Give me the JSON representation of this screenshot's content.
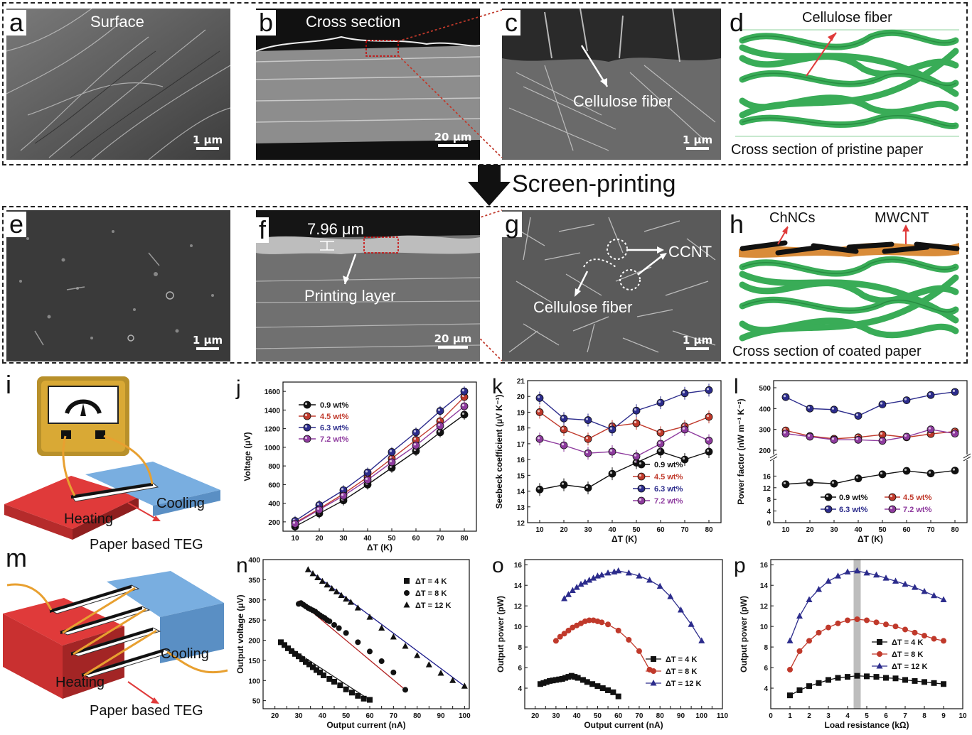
{
  "panels": {
    "a": {
      "letter": "a",
      "caption": "Surface",
      "scale": "1 μm"
    },
    "b": {
      "letter": "b",
      "caption": "Cross section",
      "scale": "20 μm"
    },
    "c": {
      "letter": "c",
      "caption": "Cellulose fiber",
      "scale": "1 μm"
    },
    "d": {
      "letter": "d",
      "top_label": "Cellulose fiber",
      "bottom_label": "Cross section of pristine paper"
    },
    "e": {
      "letter": "e",
      "scale": "1 μm"
    },
    "f": {
      "letter": "f",
      "thickness": "7.96 μm",
      "caption": "Printing layer",
      "scale": "20 μm"
    },
    "g": {
      "letter": "g",
      "ccnt": "CCNT",
      "caption": "Cellulose fiber",
      "scale": "1 μm"
    },
    "h": {
      "letter": "h",
      "label1": "ChNCs",
      "label2": "MWCNT",
      "bottom_label": "Cross section of coated paper"
    },
    "i": {
      "letter": "i",
      "cooling": "Cooling",
      "heating": "Heating",
      "teg": "Paper based TEG"
    },
    "m": {
      "letter": "m",
      "cooling": "Cooling",
      "heating": "Heating",
      "teg": "Paper based TEG"
    }
  },
  "process_arrow": "Screen-printing",
  "colors": {
    "black": "#111111",
    "red": "#c0392b",
    "blue": "#2c2c8c",
    "purple": "#8e3b9e",
    "fiber": "#2fa84f",
    "hot": "#e03a3a",
    "cold": "#79aee0",
    "coat_orange": "#d98c3a"
  },
  "chart_data": [
    {
      "id": "j",
      "letter": "j",
      "type": "line",
      "xlabel": "ΔT (K)",
      "ylabel": "Voltage (μV)",
      "x": [
        10,
        20,
        30,
        40,
        50,
        60,
        70,
        80
      ],
      "xlim": [
        5,
        85
      ],
      "ylim": [
        100,
        1700
      ],
      "xticks": [
        10,
        20,
        30,
        40,
        50,
        60,
        70,
        80
      ],
      "yticks": [
        200,
        400,
        600,
        800,
        1000,
        1200,
        1400,
        1600
      ],
      "legend_position": "top-left",
      "series": [
        {
          "name": "0.9 wt%",
          "color": "#111111",
          "values": [
            150,
            290,
            430,
            600,
            780,
            960,
            1160,
            1350
          ]
        },
        {
          "name": "4.5 wt%",
          "color": "#c0392b",
          "values": [
            190,
            340,
            500,
            680,
            880,
            1080,
            1280,
            1540
          ]
        },
        {
          "name": "6.3 wt%",
          "color": "#2c2c8c",
          "values": [
            210,
            380,
            540,
            730,
            950,
            1160,
            1390,
            1600
          ]
        },
        {
          "name": "7.2 wt%",
          "color": "#8e3b9e",
          "values": [
            180,
            330,
            480,
            650,
            840,
            1020,
            1230,
            1440
          ]
        }
      ]
    },
    {
      "id": "k",
      "letter": "k",
      "type": "line",
      "xlabel": "ΔT (K)",
      "ylabel": "Seebeck coefficient (μV K⁻¹)",
      "x": [
        10,
        20,
        30,
        40,
        50,
        60,
        70,
        80
      ],
      "xlim": [
        5,
        85
      ],
      "ylim": [
        12,
        21
      ],
      "xticks": [
        10,
        20,
        30,
        40,
        50,
        60,
        70,
        80
      ],
      "yticks": [
        12,
        13,
        14,
        15,
        16,
        17,
        18,
        19,
        20,
        21
      ],
      "legend_position": "bottom-right",
      "series": [
        {
          "name": "0.9 wt%",
          "color": "#111111",
          "values": [
            14.1,
            14.4,
            14.2,
            15.1,
            15.8,
            16.5,
            16.0,
            16.5
          ]
        },
        {
          "name": "4.5 wt%",
          "color": "#c0392b",
          "values": [
            19.0,
            17.9,
            17.3,
            18.1,
            18.3,
            17.7,
            18.1,
            18.7
          ]
        },
        {
          "name": "6.3 wt%",
          "color": "#2c2c8c",
          "values": [
            19.9,
            18.6,
            18.5,
            17.9,
            19.1,
            19.6,
            20.2,
            20.4
          ]
        },
        {
          "name": "7.2 wt%",
          "color": "#8e3b9e",
          "values": [
            17.3,
            16.9,
            16.4,
            16.5,
            16.2,
            17.0,
            17.9,
            17.2
          ]
        }
      ]
    },
    {
      "id": "l",
      "letter": "l",
      "type": "line",
      "xlabel": "ΔT (K)",
      "ylabel": "Power factor (nW m⁻¹ K⁻²)",
      "x": [
        10,
        20,
        30,
        40,
        50,
        60,
        70,
        80
      ],
      "xlim": [
        5,
        85
      ],
      "ylim_lower": [
        0,
        20
      ],
      "ylim_upper": [
        200,
        500
      ],
      "broken_axis": true,
      "xticks": [
        10,
        20,
        30,
        40,
        50,
        60,
        70,
        80
      ],
      "yticks_lower": [
        0,
        4,
        8,
        12,
        16
      ],
      "yticks_upper": [
        200,
        300,
        400,
        500
      ],
      "legend_position": "bottom",
      "series": [
        {
          "name": "0.9 wt%",
          "color": "#111111",
          "values": [
            13.2,
            13.8,
            13.4,
            15.2,
            16.6,
            17.8,
            16.9,
            17.9
          ]
        },
        {
          "name": "4.5 wt%",
          "color": "#c0392b",
          "values": [
            295,
            268,
            255,
            262,
            275,
            262,
            278,
            290
          ]
        },
        {
          "name": "6.3 wt%",
          "color": "#2c2c8c",
          "values": [
            455,
            400,
            395,
            365,
            420,
            440,
            465,
            480
          ]
        },
        {
          "name": "7.2 wt%",
          "color": "#8e3b9e",
          "values": [
            280,
            265,
            250,
            250,
            245,
            265,
            300,
            280
          ]
        }
      ]
    },
    {
      "id": "n",
      "letter": "n",
      "type": "scatter",
      "xlabel": "Output current (nA)",
      "ylabel": "Output voltage (μV)",
      "xlim": [
        15,
        102
      ],
      "ylim": [
        30,
        400
      ],
      "xticks": [
        20,
        25,
        30,
        35,
        40,
        45,
        50,
        55,
        60,
        65,
        70,
        75,
        80,
        85,
        90,
        95,
        100
      ],
      "yticks": [
        50,
        100,
        150,
        200,
        250,
        300,
        350,
        400
      ],
      "legend_position": "top-right",
      "series": [
        {
          "name": "ΔT = 4 K",
          "color": "#111111",
          "marker": "square",
          "x": [
            22.5,
            24,
            25.5,
            27,
            28.5,
            30,
            31.5,
            33,
            34.5,
            36,
            37.5,
            39,
            40.5,
            43,
            45,
            47.5,
            50,
            52.5,
            55,
            57.5,
            60
          ],
          "y": [
            195,
            188,
            180,
            173,
            166,
            160,
            153,
            146,
            140,
            133,
            126,
            120,
            113,
            104,
            97,
            88,
            78,
            70,
            62,
            55,
            52
          ]
        },
        {
          "name": "ΔT = 8 K",
          "color": "#111111",
          "marker": "circle",
          "x": [
            30,
            31,
            32,
            33,
            34,
            35,
            36,
            37,
            38,
            39,
            40,
            41,
            42,
            43,
            45,
            47,
            50,
            55,
            60,
            65,
            70,
            75
          ],
          "y": [
            290,
            292,
            288,
            284,
            280,
            277,
            274,
            271,
            266,
            262,
            258,
            255,
            250,
            247,
            238,
            230,
            218,
            195,
            172,
            148,
            120,
            77
          ]
        },
        {
          "name": "ΔT = 12 K",
          "color": "#111111",
          "marker": "triangle",
          "x": [
            34,
            36,
            38,
            40,
            42,
            44,
            46,
            48,
            50,
            52,
            55,
            60,
            65,
            70,
            75,
            80,
            85,
            90,
            95,
            100
          ],
          "y": [
            375,
            365,
            355,
            346,
            337,
            328,
            320,
            311,
            302,
            294,
            280,
            257,
            230,
            208,
            185,
            162,
            139,
            118,
            100,
            86
          ]
        }
      ],
      "fit_lines": [
        {
          "series": "ΔT = 4 K",
          "color": "#222222",
          "x1": 22.5,
          "y1": 195,
          "x2": 60,
          "y2": 52
        },
        {
          "series": "ΔT = 8 K",
          "color": "#b22222",
          "x1": 30,
          "y1": 298,
          "x2": 75,
          "y2": 77
        },
        {
          "series": "ΔT = 12 K",
          "color": "#1a1a8a",
          "x1": 34,
          "y1": 375,
          "x2": 100,
          "y2": 86
        }
      ]
    },
    {
      "id": "o",
      "letter": "o",
      "type": "line",
      "xlabel": "Output current (nA)",
      "ylabel": "Output power (pW)",
      "xlim": [
        15,
        110
      ],
      "ylim": [
        2,
        16.5
      ],
      "xticks": [
        20,
        25,
        30,
        35,
        40,
        45,
        50,
        55,
        60,
        65,
        70,
        75,
        80,
        85,
        90,
        95,
        100,
        105,
        110
      ],
      "yticks": [
        4,
        6,
        8,
        10,
        12,
        14,
        16
      ],
      "legend_position": "bottom-right",
      "series": [
        {
          "name": "ΔT = 4 K",
          "color": "#111111",
          "marker": "square",
          "x": [
            22.5,
            24,
            25.5,
            27,
            28.5,
            30,
            31.5,
            33,
            34.5,
            36,
            37.5,
            39,
            40.5,
            43,
            45,
            47.5,
            50,
            52.5,
            55,
            57.5,
            60
          ],
          "y": [
            4.4,
            4.5,
            4.6,
            4.7,
            4.75,
            4.8,
            4.85,
            4.9,
            5.0,
            5.1,
            5.2,
            5.1,
            5.0,
            4.8,
            4.6,
            4.4,
            4.2,
            4.0,
            3.8,
            3.6,
            3.2
          ]
        },
        {
          "name": "ΔT = 8 K",
          "color": "#c0392b",
          "marker": "circle",
          "x": [
            30,
            32,
            34,
            36,
            38,
            40,
            42,
            44,
            46,
            48,
            50,
            52,
            55,
            60,
            65,
            70,
            75
          ],
          "y": [
            8.6,
            9.0,
            9.3,
            9.6,
            9.9,
            10.1,
            10.3,
            10.5,
            10.6,
            10.6,
            10.5,
            10.4,
            10.2,
            9.6,
            8.7,
            7.6,
            5.8
          ]
        },
        {
          "name": "ΔT = 12 K",
          "color": "#2c2c8c",
          "marker": "triangle",
          "x": [
            34,
            36,
            38,
            40,
            42,
            44,
            46,
            48,
            50,
            52,
            55,
            58,
            60,
            65,
            70,
            75,
            80,
            85,
            90,
            95,
            100
          ],
          "y": [
            12.7,
            13.1,
            13.5,
            13.8,
            14.1,
            14.3,
            14.5,
            14.7,
            14.9,
            15.0,
            15.2,
            15.3,
            15.4,
            15.2,
            14.9,
            14.5,
            13.9,
            12.9,
            11.6,
            10.2,
            8.6
          ]
        }
      ]
    },
    {
      "id": "p",
      "letter": "p",
      "type": "line",
      "xlabel": "Load resistance (kΩ)",
      "ylabel": "Output power (pW)",
      "xlim": [
        0,
        10
      ],
      "ylim": [
        2,
        16.5
      ],
      "xticks": [
        0,
        1,
        2,
        3,
        4,
        5,
        6,
        7,
        8,
        9,
        10
      ],
      "yticks": [
        4,
        6,
        8,
        10,
        12,
        14,
        16
      ],
      "highlight_x": 4.5,
      "legend_position": "bottom-right",
      "series": [
        {
          "name": "ΔT = 4 K",
          "color": "#111111",
          "marker": "square",
          "x": [
            1,
            1.5,
            2,
            2.5,
            3,
            3.5,
            4,
            4.5,
            5,
            5.5,
            6,
            6.5,
            7,
            7.5,
            8,
            8.5,
            9
          ],
          "y": [
            3.3,
            3.8,
            4.2,
            4.5,
            4.8,
            5.0,
            5.1,
            5.2,
            5.15,
            5.1,
            5.0,
            4.95,
            4.8,
            4.7,
            4.6,
            4.5,
            4.4
          ]
        },
        {
          "name": "ΔT = 8 K",
          "color": "#c0392b",
          "marker": "circle",
          "x": [
            1,
            1.5,
            2,
            2.5,
            3,
            3.5,
            4,
            4.5,
            5,
            5.5,
            6,
            6.5,
            7,
            7.5,
            8,
            8.5,
            9
          ],
          "y": [
            5.8,
            7.6,
            8.6,
            9.4,
            9.9,
            10.3,
            10.6,
            10.7,
            10.6,
            10.4,
            10.2,
            10.0,
            9.7,
            9.4,
            9.1,
            8.8,
            8.6
          ]
        },
        {
          "name": "ΔT = 12 K",
          "color": "#2c2c8c",
          "marker": "triangle",
          "x": [
            1,
            1.5,
            2,
            2.5,
            3,
            3.5,
            4,
            4.5,
            5,
            5.5,
            6,
            6.5,
            7,
            7.5,
            8,
            8.5,
            9
          ],
          "y": [
            8.6,
            11.0,
            12.6,
            13.6,
            14.4,
            14.9,
            15.3,
            15.4,
            15.2,
            15.0,
            14.7,
            14.4,
            14.1,
            13.8,
            13.4,
            13.0,
            12.6
          ]
        }
      ]
    }
  ]
}
